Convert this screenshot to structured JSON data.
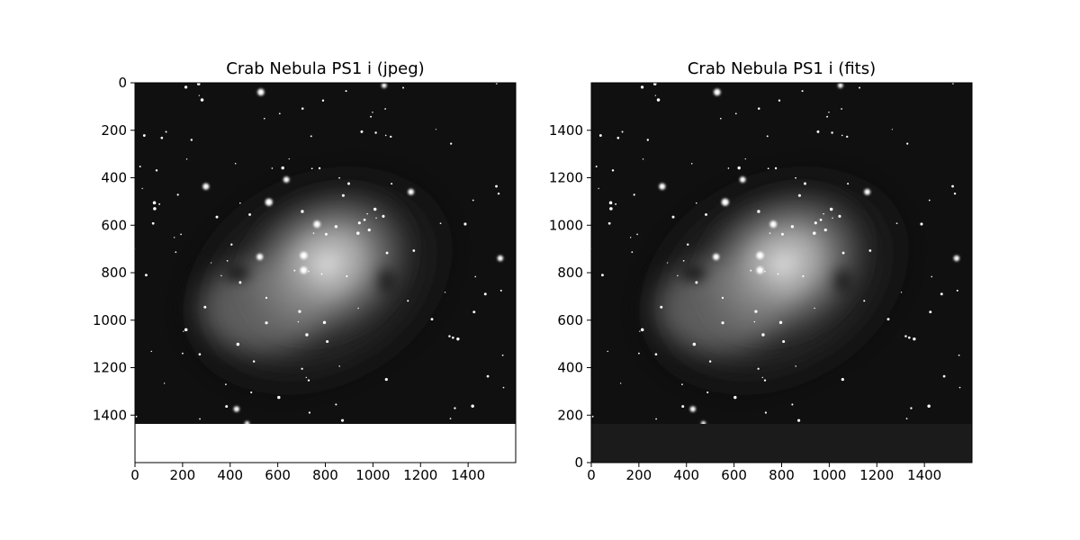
{
  "panels": [
    {
      "title": "Crab Nebula PS1 i (jpeg)",
      "y_axis_direction": "down",
      "x_ticks": [
        "0",
        "200",
        "400",
        "600",
        "800",
        "1000",
        "1200",
        "1400"
      ],
      "y_ticks": [
        "0",
        "200",
        "400",
        "600",
        "800",
        "1000",
        "1200",
        "1400"
      ],
      "blank_band_color": "#ffffff"
    },
    {
      "title": "Crab Nebula PS1 i (fits)",
      "y_axis_direction": "up",
      "x_ticks": [
        "0",
        "200",
        "400",
        "600",
        "800",
        "1000",
        "1200",
        "1400"
      ],
      "y_ticks": [
        "0",
        "200",
        "400",
        "600",
        "800",
        "1000",
        "1200",
        "1400"
      ],
      "blank_band_color": "#1b1b1b"
    }
  ],
  "colors": {
    "background": "#ffffff",
    "axis": "#000000",
    "sky": "#101010"
  },
  "image_subject": "grayscale telescope image of the Crab Nebula with surrounding stars"
}
